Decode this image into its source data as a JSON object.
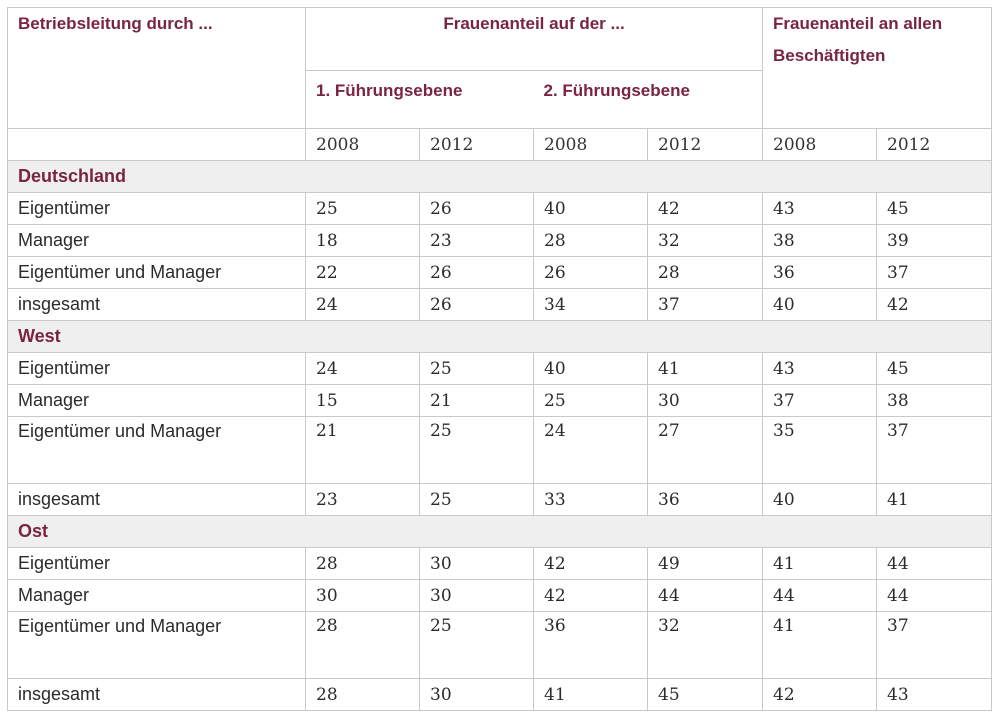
{
  "header": {
    "col1": "Betriebsleitung durch ...",
    "group": "Frauenanteil auf der ...",
    "sub1": "1. Führungsebene",
    "sub2": "2. Führungsebene",
    "col_right": "Frauenanteil an allen Beschäftigten"
  },
  "years": [
    "2008",
    "2012",
    "2008",
    "2012",
    "2008",
    "2012"
  ],
  "sections": [
    {
      "title": "Deutschland",
      "rows": [
        {
          "label": "Eigentümer",
          "values": [
            "25",
            "26",
            "40",
            "42",
            "43",
            "45"
          ]
        },
        {
          "label": "Manager",
          "values": [
            "18",
            "23",
            "28",
            "32",
            "38",
            "39"
          ]
        },
        {
          "label": "Eigentümer und Manager",
          "values": [
            "22",
            "26",
            "26",
            "28",
            "36",
            "37"
          ]
        },
        {
          "label": "insgesamt",
          "values": [
            "24",
            "26",
            "34",
            "37",
            "40",
            "42"
          ]
        }
      ]
    },
    {
      "title": "West",
      "rows": [
        {
          "label": "Eigentümer",
          "values": [
            "24",
            "25",
            "40",
            "41",
            "43",
            "45"
          ]
        },
        {
          "label": "Manager",
          "values": [
            "15",
            "21",
            "25",
            "30",
            "37",
            "38"
          ]
        },
        {
          "label": "Eigentümer und Manager",
          "values": [
            "21",
            "25",
            "24",
            "27",
            "35",
            "37"
          ]
        },
        {
          "label": "insgesamt",
          "values": [
            "23",
            "25",
            "33",
            "36",
            "40",
            "41"
          ]
        }
      ]
    },
    {
      "title": "Ost",
      "rows": [
        {
          "label": "Eigentümer",
          "values": [
            "28",
            "30",
            "42",
            "49",
            "41",
            "44"
          ]
        },
        {
          "label": "Manager",
          "values": [
            "30",
            "30",
            "42",
            "44",
            "44",
            "44"
          ]
        },
        {
          "label": "Eigentümer und Manager",
          "values": [
            "28",
            "25",
            "36",
            "32",
            "41",
            "37"
          ]
        },
        {
          "label": "insgesamt",
          "values": [
            "28",
            "30",
            "41",
            "45",
            "42",
            "43"
          ]
        }
      ]
    }
  ]
}
